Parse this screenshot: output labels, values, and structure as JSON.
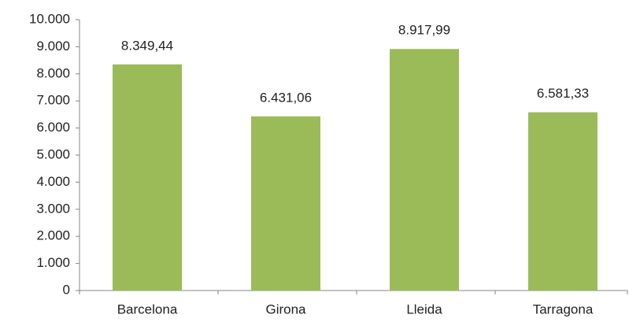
{
  "chart_data": {
    "type": "bar",
    "categories": [
      "Barcelona",
      "Girona",
      "Lleida",
      "Tarragona"
    ],
    "values": [
      8349.44,
      6431.06,
      8917.99,
      6581.33
    ],
    "value_labels": [
      "8.349,44",
      "6.431,06",
      "8.917,99",
      "6.581,33"
    ],
    "color": "#9bbb59",
    "ylim": [
      0,
      10000
    ],
    "yticks": [
      0,
      {
        "value": 1000,
        "label": "1.000"
      },
      {
        "value": 2000,
        "label": "2.000"
      },
      {
        "value": 3000,
        "label": "3.000"
      },
      {
        "value": 4000,
        "label": "4.000"
      },
      {
        "value": 5000,
        "label": "5.000"
      },
      {
        "value": 6000,
        "label": "6.000"
      },
      {
        "value": 7000,
        "label": "7.000"
      },
      {
        "value": 8000,
        "label": "8.000"
      },
      {
        "value": 9000,
        "label": "9.000"
      },
      {
        "value": 10000,
        "label": "10.000"
      }
    ],
    "grid": false
  }
}
